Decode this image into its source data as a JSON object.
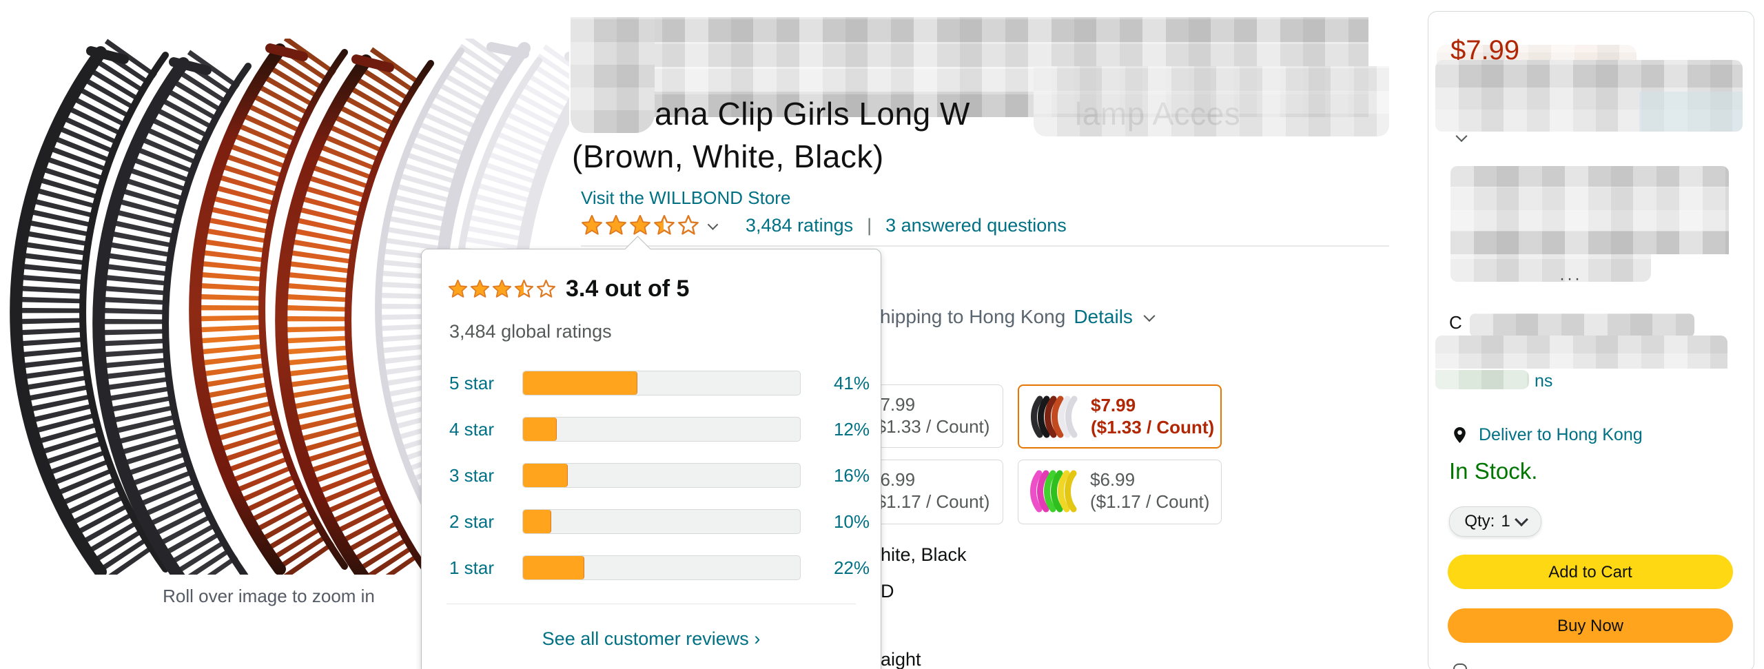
{
  "product": {
    "title_fragment_start": "ana Clip Girls Long W",
    "title_fragment_ghost": "lamp Acces",
    "title_line2": "(Brown, White, Black)",
    "store_link_label": "Visit the WILLBOND Store",
    "rating_display": 3.5,
    "ratings_count": "3,484 ratings",
    "ratings_separator": "|",
    "answered_questions": "3 answered questions",
    "zoom_hint": "Roll over image to zoom in"
  },
  "ratings_popup": {
    "score": "3.4 out of 5",
    "global_ratings": "3,484 global ratings",
    "rows": [
      {
        "label": "5 star",
        "percent": 41
      },
      {
        "label": "4 star",
        "percent": 12
      },
      {
        "label": "3 star",
        "percent": 16
      },
      {
        "label": "2 star",
        "percent": 10
      },
      {
        "label": "1 star",
        "percent": 22
      }
    ],
    "see_all": "See all customer reviews",
    "see_all_arrow": "›"
  },
  "shipping": {
    "fragment": "hipping to Hong Kong",
    "details": "Details"
  },
  "variants": {
    "row1_left_price": "$7.99",
    "row1_left_unit": "($1.33 / Count)",
    "row1_right_price": "$7.99",
    "row1_right_unit": "($1.33 / Count)",
    "row2_left_price": "$6.99",
    "row2_left_unit": "($1.17 / Count)",
    "row2_right_price": "$6.99",
    "row2_right_unit": "($1.17 / Count)"
  },
  "detail_fragments": {
    "color_tail": "hite, Black",
    "letter": "D",
    "hair_tail": "aight"
  },
  "buybox": {
    "price": "$7.99",
    "censored_letter": "C",
    "censored_link_tail": "ns",
    "deliver": "Deliver to Hong Kong",
    "stock": "In Stock.",
    "qty_label": "Qty:",
    "qty_value": "1",
    "add_to_cart": "Add to Cart",
    "buy_now": "Buy Now"
  },
  "colors": {
    "star_orange": "#FFA41C",
    "add_to_cart_yellow": "#FFD814",
    "buy_now_orange": "#FFA41C",
    "price_red": "#B12704",
    "link_teal": "#007185",
    "in_stock_green": "#007600",
    "selected_border_orange": "#E77600"
  }
}
